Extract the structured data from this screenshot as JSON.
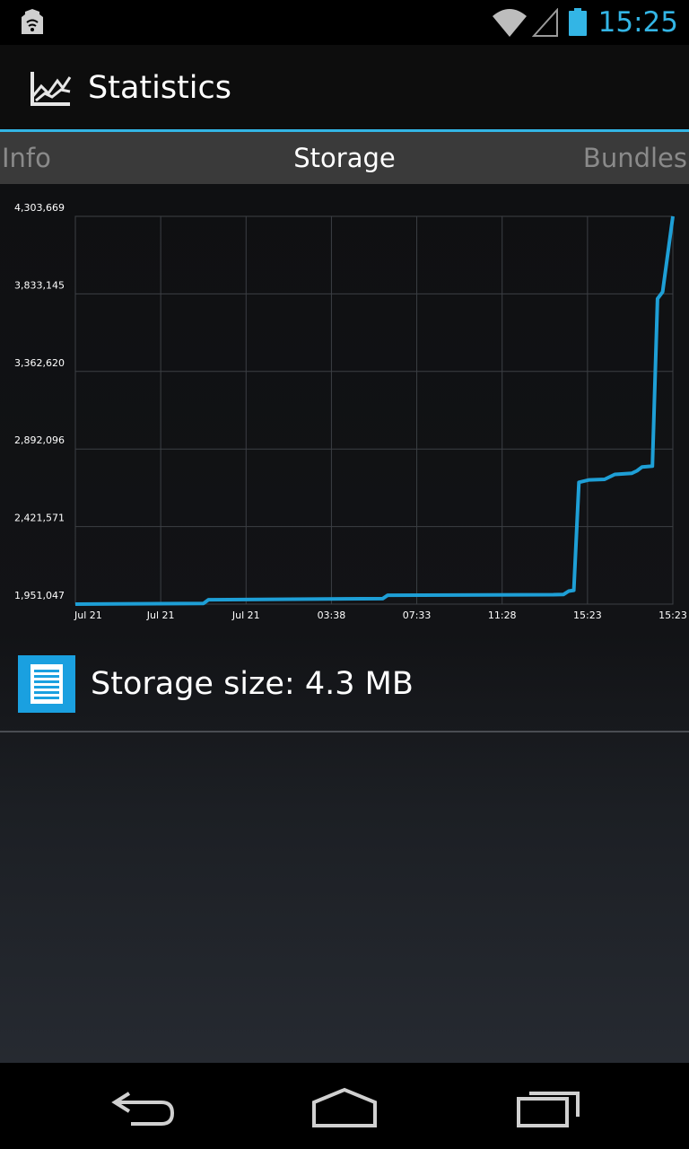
{
  "status_bar": {
    "time": "15:25",
    "icons": [
      "notification-app-icon",
      "wifi-icon",
      "signal-icon",
      "battery-icon"
    ],
    "accent_color": "#33b5e5"
  },
  "action_bar": {
    "title": "Statistics",
    "icon": "chart-line-icon"
  },
  "tabs": [
    {
      "label": "Info",
      "selected": false
    },
    {
      "label": "Storage",
      "selected": true
    },
    {
      "label": "Bundles",
      "selected": false
    }
  ],
  "chart_data": {
    "type": "line",
    "title": "",
    "xlabel": "",
    "ylabel": "",
    "y_tick_labels": [
      "4,303,669",
      "3,833,145",
      "3,362,620",
      "2,892,096",
      "2,421,571",
      "1,951,047"
    ],
    "x_tick_labels": [
      "Jul 21",
      "Jul 21",
      "Jul 21",
      "03:38",
      "07:33",
      "11:28",
      "15:23",
      "15:23"
    ],
    "ylim": [
      1951047,
      4303669
    ],
    "grid": true,
    "line_color": "#1e9fd6",
    "x_index_range": [
      0,
      7
    ],
    "series": [
      {
        "x": [
          0,
          1.5,
          1.56,
          3.6,
          3.66,
          5.6,
          5.72,
          5.78,
          5.84,
          5.9,
          6.02,
          6.2,
          6.32,
          6.52,
          6.58,
          6.64,
          6.76,
          6.82,
          6.88,
          7.0
        ],
        "values": [
          1951047,
          1955000,
          1978000,
          1984000,
          2005000,
          2008000,
          2010000,
          2030000,
          2035000,
          2690000,
          2705000,
          2708000,
          2738000,
          2745000,
          2760000,
          2783000,
          2788000,
          3804000,
          3845000,
          4303669
        ]
      }
    ]
  },
  "storage": {
    "label": "Storage size: 4.3 MB",
    "icon": "document-icon",
    "icon_color": "#1aa0e0"
  },
  "nav_bar": {
    "buttons": [
      "back-icon",
      "home-icon",
      "recent-apps-icon"
    ]
  }
}
